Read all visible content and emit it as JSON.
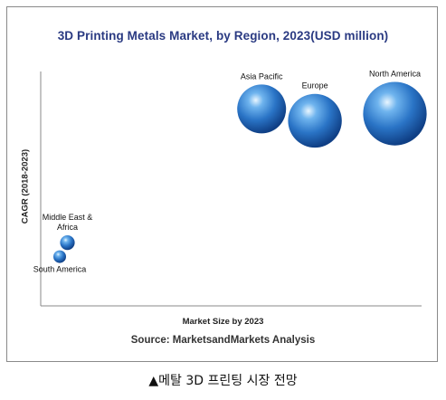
{
  "caption": "▲메탈 3D 프린팅 시장 전망",
  "chart_data": {
    "type": "bubble",
    "title": "3D Printing Metals Market, by Region, 2023(USD million)",
    "xlabel": "Market Size by 2023",
    "ylabel": "CAGR (2018-2023)",
    "source": "Source: MarketsandMarkets Analysis",
    "xlim": [
      0,
      100
    ],
    "ylim": [
      0,
      100
    ],
    "grid": false,
    "legend": "none",
    "bubble_color": "#2f78c8",
    "points": [
      {
        "label_lines": [
          "Asia Pacific"
        ],
        "x": 58,
        "y": 84,
        "size": 1.0
      },
      {
        "label_lines": [
          "Europe"
        ],
        "x": 72,
        "y": 79,
        "size": 1.1
      },
      {
        "label_lines": [
          "North America"
        ],
        "x": 93,
        "y": 82,
        "size": 1.3
      },
      {
        "label_lines": [
          "Middle East &",
          "Africa"
        ],
        "x": 7,
        "y": 27,
        "size": 0.3
      },
      {
        "label_lines": [
          "South America"
        ],
        "x": 5,
        "y": 21,
        "size": 0.25
      }
    ]
  }
}
